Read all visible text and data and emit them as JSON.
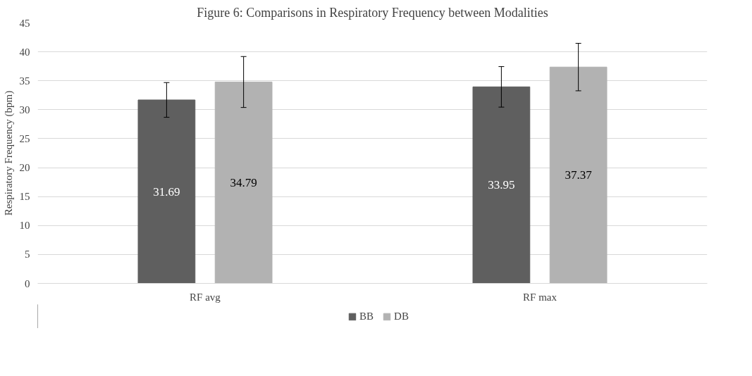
{
  "chart_data": {
    "type": "bar",
    "title": "Figure 6: Comparisons in Respiratory Frequency between Modalities",
    "ylabel": "Respiratory Frequency (bpm)",
    "categories": [
      "RF avg",
      "RF max"
    ],
    "series": [
      {
        "name": "BB",
        "color": "#5f5f5f",
        "values": [
          31.69,
          33.95
        ],
        "errors": [
          3.0,
          3.5
        ]
      },
      {
        "name": "DB",
        "color": "#b2b2b2",
        "values": [
          34.79,
          37.37
        ],
        "errors": [
          4.4,
          4.1
        ]
      }
    ],
    "ylim": [
      0,
      45
    ],
    "yticks": [
      0,
      5,
      10,
      15,
      20,
      25,
      30,
      35,
      40,
      45
    ],
    "grid": "y",
    "legend": "bottom",
    "data_labels": true
  }
}
